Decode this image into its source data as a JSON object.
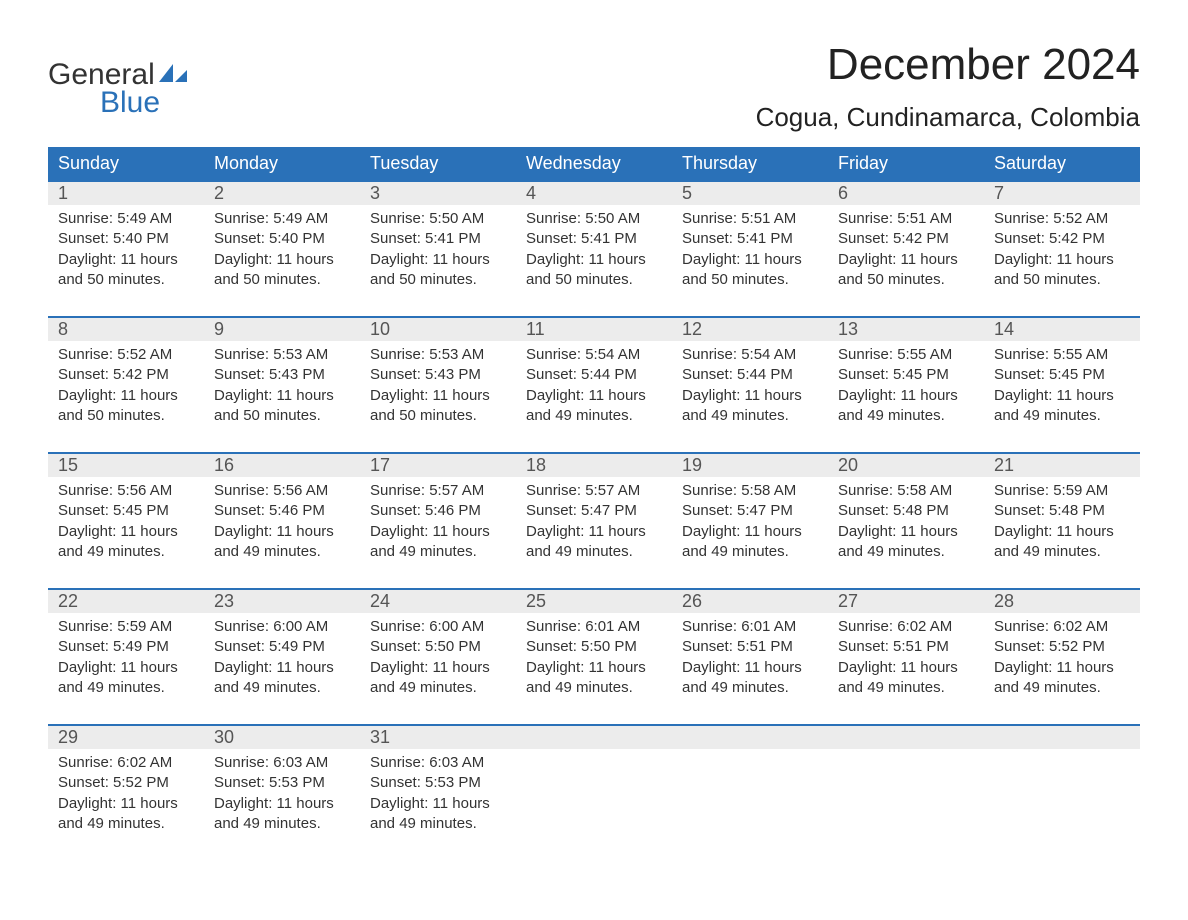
{
  "brand": {
    "word1": "General",
    "word2": "Blue",
    "text_color": "#333333",
    "accent_color": "#2a71b8"
  },
  "title": "December 2024",
  "location": "Cogua, Cundinamarca, Colombia",
  "colors": {
    "header_bg": "#2a71b8",
    "header_text": "#ffffff",
    "daynum_bg": "#ececec",
    "daynum_text": "#555555",
    "body_text": "#333333",
    "divider": "#2a71b8",
    "background": "#ffffff"
  },
  "typography": {
    "title_fontsize": 44,
    "location_fontsize": 26,
    "weekday_fontsize": 18,
    "daynum_fontsize": 18,
    "detail_fontsize": 15,
    "font_family": "Arial"
  },
  "weekdays": [
    "Sunday",
    "Monday",
    "Tuesday",
    "Wednesday",
    "Thursday",
    "Friday",
    "Saturday"
  ],
  "weeks": [
    [
      {
        "n": "1",
        "sunrise": "Sunrise: 5:49 AM",
        "sunset": "Sunset: 5:40 PM",
        "d1": "Daylight: 11 hours",
        "d2": "and 50 minutes."
      },
      {
        "n": "2",
        "sunrise": "Sunrise: 5:49 AM",
        "sunset": "Sunset: 5:40 PM",
        "d1": "Daylight: 11 hours",
        "d2": "and 50 minutes."
      },
      {
        "n": "3",
        "sunrise": "Sunrise: 5:50 AM",
        "sunset": "Sunset: 5:41 PM",
        "d1": "Daylight: 11 hours",
        "d2": "and 50 minutes."
      },
      {
        "n": "4",
        "sunrise": "Sunrise: 5:50 AM",
        "sunset": "Sunset: 5:41 PM",
        "d1": "Daylight: 11 hours",
        "d2": "and 50 minutes."
      },
      {
        "n": "5",
        "sunrise": "Sunrise: 5:51 AM",
        "sunset": "Sunset: 5:41 PM",
        "d1": "Daylight: 11 hours",
        "d2": "and 50 minutes."
      },
      {
        "n": "6",
        "sunrise": "Sunrise: 5:51 AM",
        "sunset": "Sunset: 5:42 PM",
        "d1": "Daylight: 11 hours",
        "d2": "and 50 minutes."
      },
      {
        "n": "7",
        "sunrise": "Sunrise: 5:52 AM",
        "sunset": "Sunset: 5:42 PM",
        "d1": "Daylight: 11 hours",
        "d2": "and 50 minutes."
      }
    ],
    [
      {
        "n": "8",
        "sunrise": "Sunrise: 5:52 AM",
        "sunset": "Sunset: 5:42 PM",
        "d1": "Daylight: 11 hours",
        "d2": "and 50 minutes."
      },
      {
        "n": "9",
        "sunrise": "Sunrise: 5:53 AM",
        "sunset": "Sunset: 5:43 PM",
        "d1": "Daylight: 11 hours",
        "d2": "and 50 minutes."
      },
      {
        "n": "10",
        "sunrise": "Sunrise: 5:53 AM",
        "sunset": "Sunset: 5:43 PM",
        "d1": "Daylight: 11 hours",
        "d2": "and 50 minutes."
      },
      {
        "n": "11",
        "sunrise": "Sunrise: 5:54 AM",
        "sunset": "Sunset: 5:44 PM",
        "d1": "Daylight: 11 hours",
        "d2": "and 49 minutes."
      },
      {
        "n": "12",
        "sunrise": "Sunrise: 5:54 AM",
        "sunset": "Sunset: 5:44 PM",
        "d1": "Daylight: 11 hours",
        "d2": "and 49 minutes."
      },
      {
        "n": "13",
        "sunrise": "Sunrise: 5:55 AM",
        "sunset": "Sunset: 5:45 PM",
        "d1": "Daylight: 11 hours",
        "d2": "and 49 minutes."
      },
      {
        "n": "14",
        "sunrise": "Sunrise: 5:55 AM",
        "sunset": "Sunset: 5:45 PM",
        "d1": "Daylight: 11 hours",
        "d2": "and 49 minutes."
      }
    ],
    [
      {
        "n": "15",
        "sunrise": "Sunrise: 5:56 AM",
        "sunset": "Sunset: 5:45 PM",
        "d1": "Daylight: 11 hours",
        "d2": "and 49 minutes."
      },
      {
        "n": "16",
        "sunrise": "Sunrise: 5:56 AM",
        "sunset": "Sunset: 5:46 PM",
        "d1": "Daylight: 11 hours",
        "d2": "and 49 minutes."
      },
      {
        "n": "17",
        "sunrise": "Sunrise: 5:57 AM",
        "sunset": "Sunset: 5:46 PM",
        "d1": "Daylight: 11 hours",
        "d2": "and 49 minutes."
      },
      {
        "n": "18",
        "sunrise": "Sunrise: 5:57 AM",
        "sunset": "Sunset: 5:47 PM",
        "d1": "Daylight: 11 hours",
        "d2": "and 49 minutes."
      },
      {
        "n": "19",
        "sunrise": "Sunrise: 5:58 AM",
        "sunset": "Sunset: 5:47 PM",
        "d1": "Daylight: 11 hours",
        "d2": "and 49 minutes."
      },
      {
        "n": "20",
        "sunrise": "Sunrise: 5:58 AM",
        "sunset": "Sunset: 5:48 PM",
        "d1": "Daylight: 11 hours",
        "d2": "and 49 minutes."
      },
      {
        "n": "21",
        "sunrise": "Sunrise: 5:59 AM",
        "sunset": "Sunset: 5:48 PM",
        "d1": "Daylight: 11 hours",
        "d2": "and 49 minutes."
      }
    ],
    [
      {
        "n": "22",
        "sunrise": "Sunrise: 5:59 AM",
        "sunset": "Sunset: 5:49 PM",
        "d1": "Daylight: 11 hours",
        "d2": "and 49 minutes."
      },
      {
        "n": "23",
        "sunrise": "Sunrise: 6:00 AM",
        "sunset": "Sunset: 5:49 PM",
        "d1": "Daylight: 11 hours",
        "d2": "and 49 minutes."
      },
      {
        "n": "24",
        "sunrise": "Sunrise: 6:00 AM",
        "sunset": "Sunset: 5:50 PM",
        "d1": "Daylight: 11 hours",
        "d2": "and 49 minutes."
      },
      {
        "n": "25",
        "sunrise": "Sunrise: 6:01 AM",
        "sunset": "Sunset: 5:50 PM",
        "d1": "Daylight: 11 hours",
        "d2": "and 49 minutes."
      },
      {
        "n": "26",
        "sunrise": "Sunrise: 6:01 AM",
        "sunset": "Sunset: 5:51 PM",
        "d1": "Daylight: 11 hours",
        "d2": "and 49 minutes."
      },
      {
        "n": "27",
        "sunrise": "Sunrise: 6:02 AM",
        "sunset": "Sunset: 5:51 PM",
        "d1": "Daylight: 11 hours",
        "d2": "and 49 minutes."
      },
      {
        "n": "28",
        "sunrise": "Sunrise: 6:02 AM",
        "sunset": "Sunset: 5:52 PM",
        "d1": "Daylight: 11 hours",
        "d2": "and 49 minutes."
      }
    ],
    [
      {
        "n": "29",
        "sunrise": "Sunrise: 6:02 AM",
        "sunset": "Sunset: 5:52 PM",
        "d1": "Daylight: 11 hours",
        "d2": "and 49 minutes."
      },
      {
        "n": "30",
        "sunrise": "Sunrise: 6:03 AM",
        "sunset": "Sunset: 5:53 PM",
        "d1": "Daylight: 11 hours",
        "d2": "and 49 minutes."
      },
      {
        "n": "31",
        "sunrise": "Sunrise: 6:03 AM",
        "sunset": "Sunset: 5:53 PM",
        "d1": "Daylight: 11 hours",
        "d2": "and 49 minutes."
      },
      null,
      null,
      null,
      null
    ]
  ]
}
